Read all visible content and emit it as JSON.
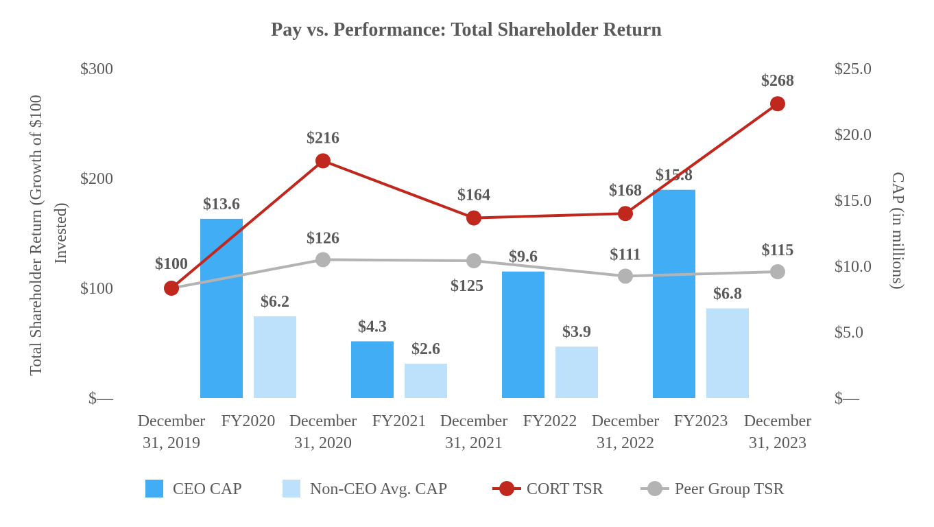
{
  "chart_data": {
    "type": "bar+line",
    "title": "Pay vs. Performance: Total Shareholder Return",
    "y_left": {
      "label": "Total Shareholder Return (Growth of $100 Invested)",
      "label_lines": [
        "Total Shareholder Return (Growth of $100",
        "Invested)"
      ],
      "range": [
        0,
        300
      ],
      "ticks": [
        0,
        100,
        200,
        300
      ],
      "tick_labels": [
        "$—",
        "$100",
        "$200",
        "$300"
      ]
    },
    "y_right": {
      "label": "CAP (in millions)",
      "range": [
        0,
        25
      ],
      "ticks": [
        0,
        5,
        10,
        15,
        20,
        25
      ],
      "tick_labels": [
        "$—",
        "$5.0",
        "$10.0",
        "$15.0",
        "$20.0",
        "$25.0"
      ]
    },
    "categories": [
      [
        "December",
        "31, 2019"
      ],
      [
        "FY2020"
      ],
      [
        "December",
        "31, 2020"
      ],
      [
        "FY2021"
      ],
      [
        "December",
        "31, 2021"
      ],
      [
        "FY2022"
      ],
      [
        "December",
        "31, 2022"
      ],
      [
        "FY2023"
      ],
      [
        "December",
        "31, 2023"
      ]
    ],
    "bar_series": [
      {
        "name": "CEO CAP",
        "color": "#41ADF5",
        "axis": "right",
        "points": [
          {
            "category": "FY2020",
            "value": 13.6,
            "label": "$13.6"
          },
          {
            "category": "FY2021",
            "value": 4.3,
            "label": "$4.3"
          },
          {
            "category": "FY2022",
            "value": 9.6,
            "label": "$9.6"
          },
          {
            "category": "FY2023",
            "value": 15.8,
            "label": "$15.8"
          }
        ]
      },
      {
        "name": "Non-CEO Avg. CAP",
        "color": "#BDE1FA",
        "axis": "right",
        "points": [
          {
            "category": "FY2020",
            "value": 6.2,
            "label": "$6.2"
          },
          {
            "category": "FY2021",
            "value": 2.6,
            "label": "$2.6"
          },
          {
            "category": "FY2022",
            "value": 3.9,
            "label": "$3.9"
          },
          {
            "category": "FY2023",
            "value": 6.8,
            "label": "$6.8"
          }
        ]
      }
    ],
    "line_series": [
      {
        "name": "CORT TSR",
        "color": "#C0281D",
        "axis": "left",
        "x": [
          "December 31, 2019",
          "December 31, 2020",
          "December 31, 2021",
          "December 31, 2022",
          "December 31, 2023"
        ],
        "values": [
          100,
          216,
          164,
          168,
          268
        ],
        "labels": [
          "$100",
          "$216",
          "$164",
          "$168",
          "$268"
        ]
      },
      {
        "name": "Peer Group TSR",
        "color": "#B3B3B3",
        "axis": "left",
        "x": [
          "December 31, 2019",
          "December 31, 2020",
          "December 31, 2021",
          "December 31, 2022",
          "December 31, 2023"
        ],
        "values": [
          100,
          126,
          125,
          111,
          115
        ],
        "labels": [
          "$100",
          "$126",
          "$125",
          "$111",
          "$115"
        ]
      }
    ],
    "legend": {
      "position": "bottom",
      "items": [
        "CEO CAP",
        "Non-CEO Avg. CAP",
        "CORT TSR",
        "Peer Group TSR"
      ]
    },
    "grid": false
  }
}
